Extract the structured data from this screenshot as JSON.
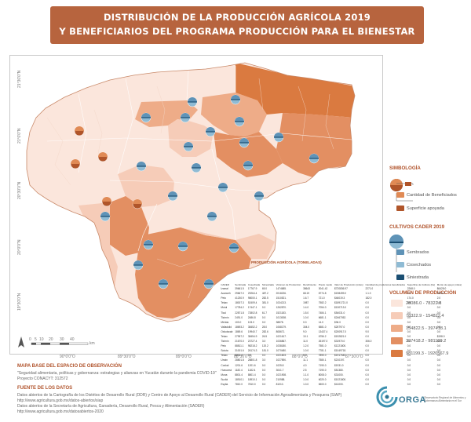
{
  "title": {
    "line1": "DISTRIBUCIÓN DE LA PRODUCCIÓN AGRÍCOLA 2019",
    "line2": "Y BENEFICIARIOS DEL PROGRAMA PRODUCCIÓN PARA EL BIENESTAR"
  },
  "colors": {
    "banner": "#b7643e",
    "class1": "#fbe6dc",
    "class2": "#f6ccb8",
    "class3": "#eeac88",
    "class4": "#e38f62",
    "class5": "#da7a40",
    "sembrados": "#5f93b7",
    "cosechados": "#8fbbd4",
    "siniestrada": "#1b4f73"
  },
  "map": {
    "lat_labels": [
      "21°30'0\"N",
      "21°0'0\"N",
      "20°30'0\"N",
      "20°0'0\"N",
      "19°30'0\"N"
    ],
    "lon_labels": [
      "90°0'0\"O",
      "89°30'0\"O",
      "89°0'0\"O",
      "88°30'0\"O",
      "88°0'0\"O",
      "87°30'0\"O"
    ]
  },
  "legend": {
    "simbologia_title": "SIMBOLOGÍA",
    "simbologia_items": [
      "Cantidad de Beneficiados",
      "Superficie apoyada"
    ],
    "cultivos_title": "CULTIVOS CADER 2019",
    "cultivos_items": [
      "Sembrados",
      "Cosechados",
      "Siniestrada"
    ],
    "volumen_title": "VOLUMEN DE PRODUCCIÓN",
    "volumen_items": [
      "28086.0 - 78322.8",
      "78322.9 - 154822.4",
      "154822.5 - 397418.1",
      "397418.2 - 981199.2",
      "981199.3 - 1920567.9"
    ]
  },
  "scale": {
    "ticks": [
      "0",
      "5",
      "10",
      "20",
      "30",
      "40"
    ],
    "unit": "km"
  },
  "table": {
    "title": "PRODUCCIÓN AGRÍCOLA (TONELADAS)",
    "headers": [
      "CADER",
      "Sembrada",
      "Cosechada",
      "Siniestrada",
      "Volumen de Producción",
      "Rendimiento",
      "Precio medio",
      "Valor de Producción (miles)",
      "Cantidad de productores beneficiados",
      "Superficie de Cultivos (ha)",
      "Monto de apoyo (miles)"
    ],
    "rows": [
      [
        "Izamal",
        "39661.5",
        "17767.9",
        "65.0",
        "1474685.",
        "38643",
        "3041.42",
        "$720836.97",
        "2271.0",
        "2268.0",
        "$6428.0"
      ],
      [
        "Acanceh",
        "29667.0",
        "29264.4",
        "487.2",
        "2018226.",
        "68.19",
        "8774.8",
        "$198499.0",
        "1.1.0",
        "1.0",
        "2304.0"
      ],
      [
        "Peto",
        "41230.9",
        "98000.1",
        "282.5",
        "1510521.",
        "1.6.7",
        "721.0",
        "$46019.3",
        "182.0",
        "174.0",
        "2.0"
      ],
      [
        "Tekax",
        "18007.3",
        "52409.4",
        "381.0",
        "1034213.",
        "1987",
        "7582.2",
        "$1891721.0",
        "0.0",
        "0.0",
        "0.0"
      ],
      [
        "Motul",
        "17784.2",
        "17447.1",
        "0.0",
        "1262870.",
        "1.4.0",
        "7054.0",
        "$130713.0",
        "0.0",
        "0.0",
        "0.0"
      ],
      [
        "Ticul",
        "22871.8",
        "72802.8",
        "61.7",
        "1521183.",
        "1.5.0",
        "7484.1",
        "$54031.0",
        "0.0",
        "0.0",
        "0.0"
      ],
      [
        "Tizimín",
        "2491.0",
        "2486.8",
        "0.0",
        "1013008.",
        "1.0.0",
        "6681.1",
        "$2467052.",
        "0.0",
        "0.0",
        "0.0"
      ],
      [
        "Mérida",
        "103.0",
        "103.0",
        "0.0",
        "38878.",
        "0.0",
        "14.0",
        "$36.0",
        "0.0",
        "0.0",
        "0.0"
      ],
      [
        "Valladolid",
        "18693.2",
        "38452.2",
        "28.0",
        "1068179.",
        "304.0",
        "6581.0",
        "$25797.0",
        "0.0",
        "0.0",
        "0.0"
      ],
      [
        "Oxkutzcab",
        "1869.6",
        "19940.7",
        "282.6",
        "808671.",
        "9.0",
        "13437.4",
        "$200917.0",
        "9.0",
        "0.0",
        "0.0"
      ],
      [
        "Tekax",
        "27957.2",
        "38454.9",
        "26.5",
        "1021617.",
        "10.1",
        "6756.2",
        "$192821.0",
        "0.0",
        "0.0",
        "$198.0"
      ],
      [
        "Tizimín",
        "21670.0",
        "23727.4",
        "3.0",
        "1036867.",
        "11.0",
        "26197.0",
        "$31970.0",
        "306.0",
        "0.0",
        "$1.0"
      ],
      [
        "Peto",
        "88811.1",
        "98218.2",
        "120.2",
        "1038180.",
        "1.2.0",
        "7581.0",
        "$1221800.",
        "0.0",
        "0.0",
        "0.0"
      ],
      [
        "Sotuta",
        "31001.6",
        "26174.3",
        "181.0",
        "1070480.",
        "1.0.0",
        "7781.1",
        "$1049718.",
        "0.0",
        "0.0",
        "0.0"
      ],
      [
        "Tekax",
        "8201.4",
        "0.0",
        "0.0",
        "1021603.",
        "0.0",
        "7890.0",
        "$1917640.",
        "0.0",
        "0.0",
        "0.0"
      ],
      [
        "Umán",
        "28801.8",
        "28801.8",
        "3.0",
        "1027890.",
        "11.1",
        "7580.1",
        "$210197.",
        "0.0",
        "0.0",
        "0.0"
      ],
      [
        "Conkal",
        "1201.6",
        "1201.6",
        "0.0",
        "1025.8",
        "4.0",
        "7190.0",
        "$1931.0",
        "0.0",
        "0.0",
        "0.0"
      ],
      [
        "Hunucmá",
        "1182.4",
        "1182.4",
        "0.0",
        "3041.7",
        "2.5",
        "7190.0",
        "$51380.",
        "0.0",
        "0.0",
        "0.0"
      ],
      [
        "Muna",
        "8801.4",
        "8801.4",
        "0.0",
        "1021908.",
        "1.1.0",
        "8008.0",
        "$31000.",
        "0.0",
        "0.0",
        "0.0"
      ],
      [
        "Sucilá",
        "18910.1",
        "18910.1",
        "0.0",
        "210988.",
        "1.0.0",
        "6020.0",
        "$1021800.",
        "0.0",
        "0.0",
        "0.0"
      ],
      [
        "Espita",
        "7810.0",
        "7810.0",
        "0.0",
        "81010.",
        "1.0.0",
        "6500.0",
        "$41000.",
        "0.0",
        "0.0",
        "0.0"
      ]
    ]
  },
  "footer": {
    "mapa_base_title": "MAPA BASE DEL ESPACIO DE OBSERVACIÓN",
    "mapa_base_lines": [
      "\"Seguridad alimentaria, políticas y gobernanza: estrategias y alianzas en Yucatán durante la pandemia COVID-19\"",
      "Proyecto CONACYT: 312572"
    ],
    "fuente_title": "FUENTE DE LOS DATOS",
    "fuente_lines": [
      "Datos abiertos de la Cartografía de los Distritos de Desarrollo Rural (DDR) y Centro de Apoyo al Desarrollo Rural (CADER) del Servicio de Información Agroalimentaria y Pesquera (SIAP)",
      "http://www.agricultura.gob.mx/datos-abiertos/siap",
      "Datos abiertos de la Secretaría de Agricultura, Ganadería, Desarrollo Rural, Pesca y Alimentación (SADER)",
      "http://www.agricultura.gob.mx/datosabiertos-2020"
    ]
  },
  "logo": {
    "name": "ORGA",
    "subtitle": "Observatorio Regional de Alimentos y Gobernanza Alimentaria en el Sur"
  }
}
